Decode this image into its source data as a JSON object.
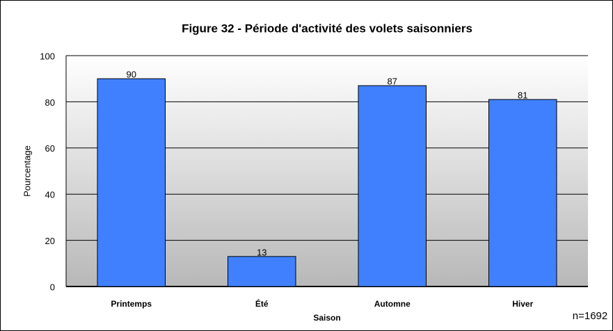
{
  "chart_data": {
    "type": "bar",
    "title": "Figure 32 - Période d'activité des volets saisonniers",
    "x_label": "Saison",
    "y_label": "Pourcentage",
    "note": "n=1692",
    "categories": [
      "Printemps",
      "Été",
      "Automne",
      "Hiver"
    ],
    "values": [
      90,
      13,
      87,
      81
    ],
    "color": "#4080ff",
    "ylim": [
      0,
      100
    ],
    "yticks": [
      0,
      20,
      40,
      60,
      80,
      100
    ],
    "grid": true
  }
}
